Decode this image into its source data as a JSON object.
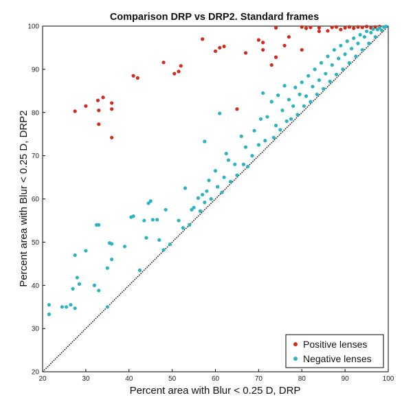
{
  "chart_data": {
    "type": "scatter",
    "title": "Comparison DRP vs DRP2. Standard frames",
    "xlabel": "Percent area with Blur < 0.25 D, DRP",
    "ylabel": "Percent area with Blur < 0.25 D, DRP2",
    "xlim": [
      20,
      100
    ],
    "ylim": [
      20,
      100
    ],
    "xticks": [
      "20",
      "30",
      "40",
      "50",
      "60",
      "70",
      "80",
      "90",
      "100"
    ],
    "yticks": [
      "20",
      "30",
      "40",
      "50",
      "60",
      "70",
      "80",
      "90",
      "100"
    ],
    "grid": false,
    "legend_position": "bottom-right",
    "reference_line": {
      "style": "dotted",
      "from": [
        20,
        20
      ],
      "to": [
        100,
        100
      ]
    },
    "series": [
      {
        "name": "Positive lenses",
        "color": "#d42a1c",
        "points": [
          [
            27.5,
            80.3
          ],
          [
            30,
            81.5
          ],
          [
            32.8,
            82.8
          ],
          [
            33,
            80.5
          ],
          [
            33,
            77.3
          ],
          [
            34,
            83.5
          ],
          [
            36,
            82.2
          ],
          [
            36,
            80.8
          ],
          [
            36,
            74.2
          ],
          [
            41,
            88.5
          ],
          [
            42,
            88.0
          ],
          [
            48,
            91.6
          ],
          [
            50.5,
            89.0
          ],
          [
            51.5,
            89.5
          ],
          [
            52,
            90.8
          ],
          [
            57,
            97.0
          ],
          [
            60,
            94.2
          ],
          [
            61,
            95.0
          ],
          [
            62,
            95.3
          ],
          [
            65,
            80.8
          ],
          [
            67,
            93.8
          ],
          [
            70,
            96.8
          ],
          [
            71,
            96.2
          ],
          [
            71,
            94.5
          ],
          [
            74,
            99.6
          ],
          [
            73,
            91.0
          ],
          [
            74,
            92.8
          ],
          [
            76,
            95.5
          ],
          [
            77,
            97.5
          ],
          [
            80,
            94.5
          ],
          [
            80,
            99.8
          ],
          [
            81,
            99.5
          ],
          [
            82,
            99.7
          ],
          [
            84,
            99.6
          ],
          [
            84,
            98.8
          ],
          [
            86,
            98.9
          ],
          [
            87,
            99.7
          ],
          [
            88,
            99.8
          ],
          [
            89,
            99.2
          ],
          [
            90,
            99.6
          ],
          [
            91,
            99.8
          ],
          [
            92,
            99.5
          ],
          [
            93,
            99.8
          ],
          [
            94,
            99.7
          ],
          [
            95,
            99.9
          ],
          [
            96,
            99.6
          ],
          [
            97,
            99.8
          ],
          [
            98,
            99.9
          ]
        ]
      },
      {
        "name": "Negative lenses",
        "color": "#2bb3c0",
        "points": [
          [
            21.5,
            35.5
          ],
          [
            21.5,
            33.3
          ],
          [
            24.5,
            35.0
          ],
          [
            25.5,
            35.0
          ],
          [
            26.5,
            35.5
          ],
          [
            27.5,
            34.7
          ],
          [
            27.0,
            39.2
          ],
          [
            28.0,
            41.8
          ],
          [
            28.5,
            40.3
          ],
          [
            27.5,
            47.0
          ],
          [
            30.0,
            48.0
          ],
          [
            32.0,
            40.0
          ],
          [
            33.0,
            38.8
          ],
          [
            32.5,
            54.0
          ],
          [
            33.0,
            54.0
          ],
          [
            35.0,
            35.0
          ],
          [
            35.0,
            44.0
          ],
          [
            35.5,
            49.8
          ],
          [
            36.0,
            49.6
          ],
          [
            36.0,
            46.0
          ],
          [
            39.0,
            49.0
          ],
          [
            40.5,
            55.8
          ],
          [
            41.0,
            56.0
          ],
          [
            42.5,
            43.5
          ],
          [
            43.5,
            55.0
          ],
          [
            44.0,
            51.0
          ],
          [
            44.5,
            59.0
          ],
          [
            45.0,
            59.5
          ],
          [
            45.5,
            55.2
          ],
          [
            46.5,
            55.2
          ],
          [
            47.0,
            50.5
          ],
          [
            48.0,
            48.2
          ],
          [
            48.5,
            57.5
          ],
          [
            49.5,
            49.5
          ],
          [
            51.5,
            55.0
          ],
          [
            52.5,
            53.3
          ],
          [
            53.0,
            62.5
          ],
          [
            54.0,
            54.0
          ],
          [
            54.5,
            57.5
          ],
          [
            55.0,
            58.0
          ],
          [
            56.0,
            60.2
          ],
          [
            56.5,
            57.2
          ],
          [
            57.0,
            61.0
          ],
          [
            57.5,
            59.2
          ],
          [
            57.5,
            73.3
          ],
          [
            58.0,
            61.8
          ],
          [
            58.5,
            64.3
          ],
          [
            59.0,
            60.0
          ],
          [
            60.0,
            66.5
          ],
          [
            60.5,
            62.8
          ],
          [
            61.0,
            79.8
          ],
          [
            61.5,
            61.5
          ],
          [
            62.0,
            65.0
          ],
          [
            62.5,
            70.5
          ],
          [
            63.0,
            69.0
          ],
          [
            63.5,
            64.0
          ],
          [
            64.5,
            68.0
          ],
          [
            65.0,
            65.5
          ],
          [
            66.0,
            74.5
          ],
          [
            66.5,
            68.0
          ],
          [
            67.0,
            72.0
          ],
          [
            67.5,
            67.5
          ],
          [
            68.5,
            70.0
          ],
          [
            69.0,
            75.8
          ],
          [
            70.0,
            72.5
          ],
          [
            70.5,
            78.5
          ],
          [
            71.0,
            84.5
          ],
          [
            71.5,
            73.5
          ],
          [
            72.0,
            79.0
          ],
          [
            73.0,
            82.5
          ],
          [
            73.5,
            74.2
          ],
          [
            74.0,
            77.0
          ],
          [
            74.5,
            84.0
          ],
          [
            75.0,
            76.0
          ],
          [
            75.5,
            80.5
          ],
          [
            76.0,
            86.2
          ],
          [
            76.5,
            78.0
          ],
          [
            77.0,
            83.0
          ],
          [
            77.5,
            78.5
          ],
          [
            78.0,
            81.5
          ],
          [
            78.5,
            85.8
          ],
          [
            79.0,
            79.5
          ],
          [
            79.5,
            84.2
          ],
          [
            80.0,
            87.0
          ],
          [
            80.5,
            81.5
          ],
          [
            81.0,
            83.8
          ],
          [
            81.5,
            88.5
          ],
          [
            82.0,
            82.5
          ],
          [
            82.5,
            86.0
          ],
          [
            83.0,
            90.0
          ],
          [
            83.5,
            84.2
          ],
          [
            84.0,
            87.5
          ],
          [
            84.5,
            91.5
          ],
          [
            85.0,
            85.5
          ],
          [
            85.5,
            89.0
          ],
          [
            86.0,
            93.0
          ],
          [
            86.5,
            87.2
          ],
          [
            87.0,
            91.0
          ],
          [
            87.5,
            94.5
          ],
          [
            88.0,
            88.8
          ],
          [
            88.5,
            92.5
          ],
          [
            89.0,
            95.5
          ],
          [
            89.5,
            90.0
          ],
          [
            90.0,
            93.5
          ],
          [
            90.5,
            96.5
          ],
          [
            91.0,
            91.5
          ],
          [
            91.5,
            94.8
          ],
          [
            92.0,
            97.2
          ],
          [
            92.5,
            93.0
          ],
          [
            93.0,
            96.0
          ],
          [
            93.5,
            98.0
          ],
          [
            94.0,
            94.5
          ],
          [
            94.5,
            97.5
          ],
          [
            95.0,
            98.8
          ],
          [
            95.5,
            96.0
          ],
          [
            96.0,
            98.5
          ],
          [
            96.5,
            99.3
          ],
          [
            97.0,
            97.5
          ],
          [
            97.5,
            99.2
          ],
          [
            98.0,
            99.6
          ],
          [
            98.5,
            99.0
          ],
          [
            99.0,
            99.8
          ],
          [
            99.5,
            99.9
          ]
        ]
      }
    ]
  }
}
